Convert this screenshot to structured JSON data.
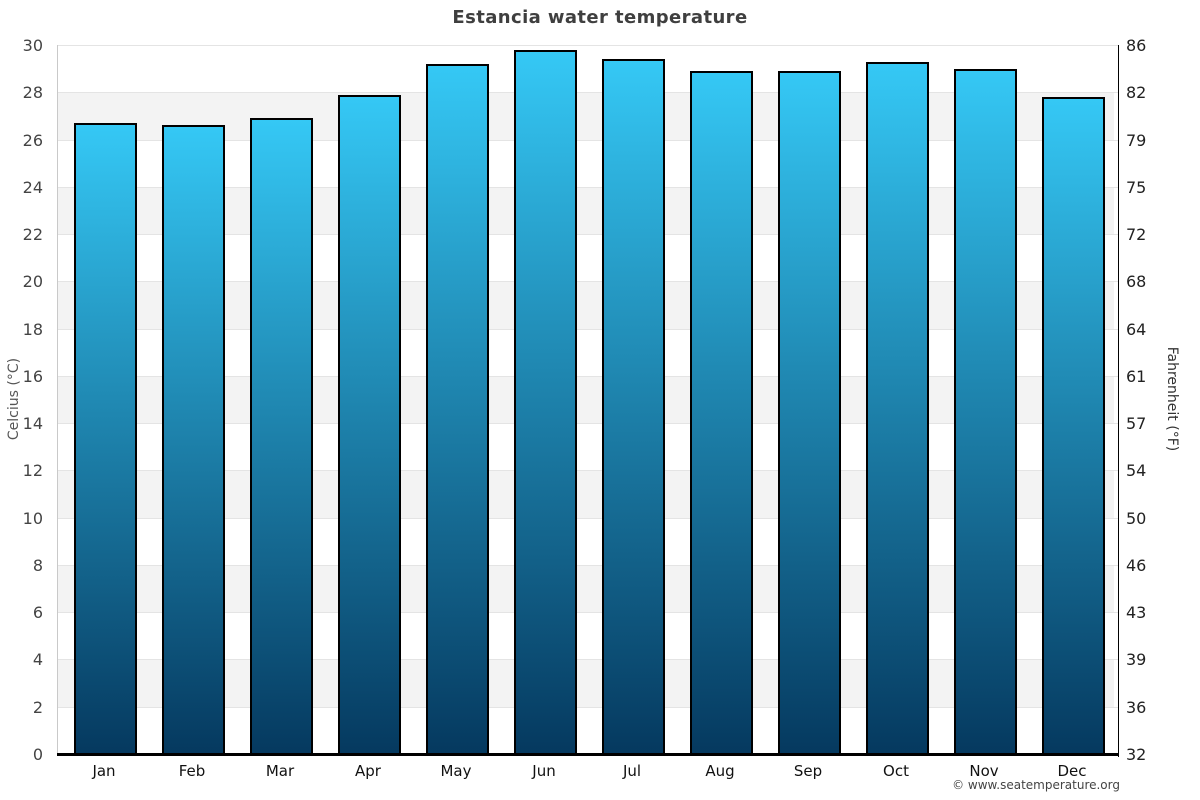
{
  "title": "Estancia water temperature",
  "chart_data": {
    "type": "bar",
    "title": "Estancia water temperature",
    "categories": [
      "Jan",
      "Feb",
      "Mar",
      "Apr",
      "May",
      "Jun",
      "Jul",
      "Aug",
      "Sep",
      "Oct",
      "Nov",
      "Dec"
    ],
    "values": [
      26.7,
      26.6,
      26.9,
      27.9,
      29.2,
      29.8,
      29.4,
      28.9,
      28.9,
      29.3,
      29.0,
      27.8
    ],
    "units": "°C",
    "ylabel_left": "Celcius (°C)",
    "ylabel_right": "Fahrenheit (°F)",
    "xlabel": "",
    "ylim": [
      0,
      30
    ],
    "celsius_ticks": [
      0,
      2,
      4,
      6,
      8,
      10,
      12,
      14,
      16,
      18,
      20,
      22,
      24,
      26,
      28,
      30
    ],
    "fahrenheit_tick_labels": [
      "32",
      "36",
      "39",
      "43",
      "46",
      "50",
      "54",
      "57",
      "61",
      "64",
      "68",
      "72",
      "75",
      "79",
      "82",
      "86"
    ],
    "grid": "horizontal gridlines every 2°C with alternating shaded bands",
    "legend": "none",
    "watermark": "© www.seatemperature.org",
    "colors": {
      "bar_top": "#35C8F5",
      "bar_bottom": "#05395F",
      "bar_border": "#000000",
      "band": "#F3F3F3",
      "gridline": "#E4E4E4",
      "axis_left_line": "#C9C9C9",
      "axis_bottom_line": "#000000",
      "axis_right_line": "#000000",
      "title_color": "#3F3F3F"
    }
  }
}
